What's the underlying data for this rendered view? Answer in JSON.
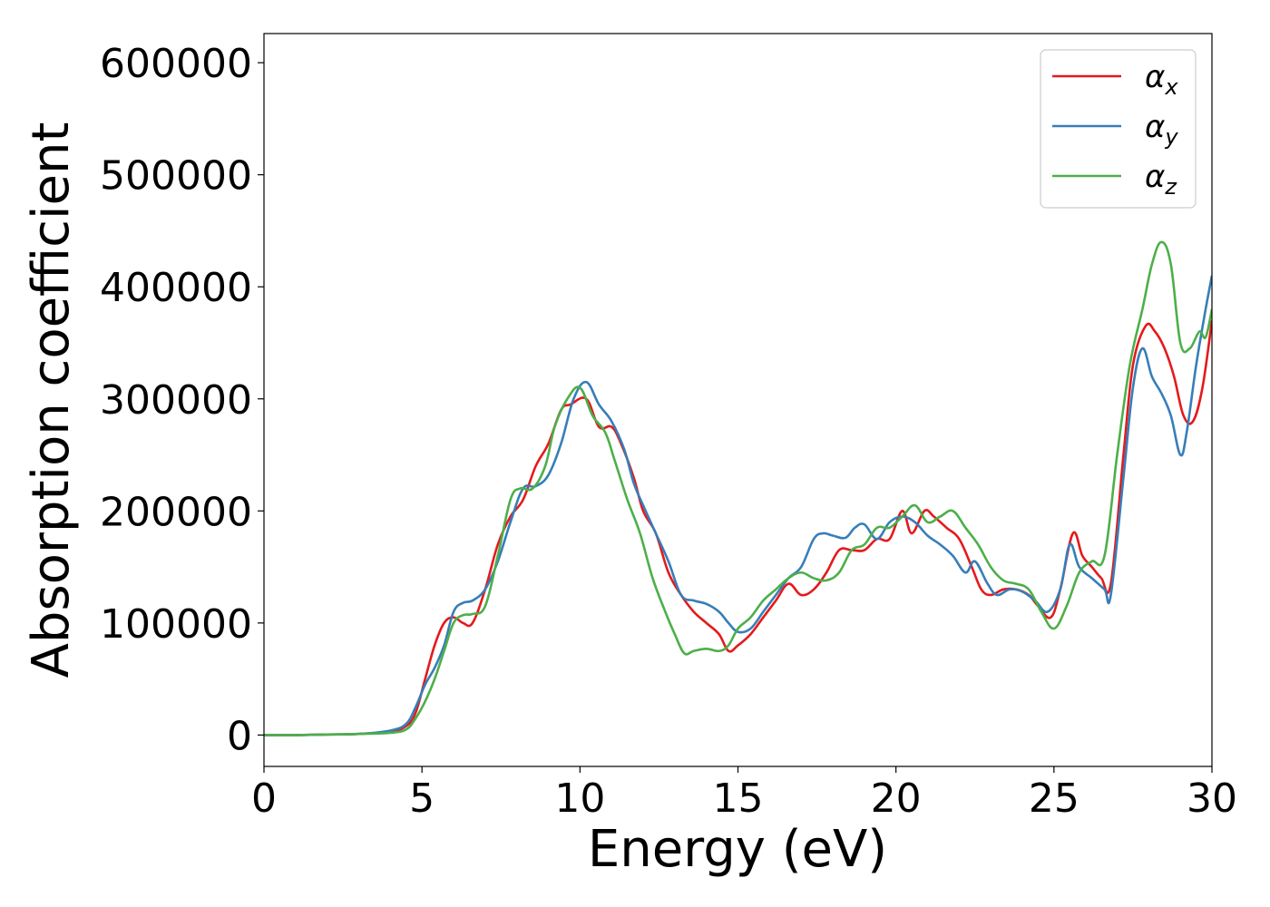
{
  "chart_data": {
    "type": "line",
    "xlabel": "Energy (eV)",
    "ylabel": "Absorption coefficient",
    "xlim": [
      0,
      30
    ],
    "ylim": [
      -28000,
      626000
    ],
    "xticks": [
      0,
      5,
      10,
      15,
      20,
      25,
      30
    ],
    "xtick_labels": [
      "0",
      "5",
      "10",
      "15",
      "20",
      "25",
      "30"
    ],
    "yticks": [
      0,
      100000,
      200000,
      300000,
      400000,
      500000,
      600000
    ],
    "ytick_labels": [
      "0",
      "100000",
      "200000",
      "300000",
      "400000",
      "500000",
      "600000"
    ],
    "grid": false,
    "legend_position": "top-right",
    "series": [
      {
        "name": "α_x",
        "legend_symbol": "α",
        "legend_subscript": "x",
        "color": "#e41a1c",
        "x": [
          0,
          1,
          2,
          3,
          4,
          4.5,
          4.8,
          5.1,
          5.4,
          5.7,
          6.0,
          6.3,
          6.6,
          7.0,
          7.4,
          7.8,
          8.2,
          8.6,
          9.0,
          9.4,
          9.7,
          10.2,
          10.6,
          11.0,
          11.3,
          11.7,
          12.0,
          12.4,
          12.8,
          13.2,
          13.6,
          14.0,
          14.4,
          14.7,
          15.0,
          15.4,
          15.8,
          16.2,
          16.6,
          17.0,
          17.4,
          17.8,
          18.2,
          18.6,
          19.0,
          19.4,
          19.8,
          20.2,
          20.5,
          20.9,
          21.2,
          21.6,
          22.0,
          22.4,
          22.7,
          23.0,
          23.4,
          23.8,
          24.2,
          24.5,
          24.9,
          25.2,
          25.6,
          25.9,
          26.2,
          26.5,
          26.8,
          27.2,
          27.5,
          27.9,
          28.2,
          28.5,
          28.8,
          29.1,
          29.4,
          29.7,
          30.0
        ],
        "y": [
          0,
          0,
          500,
          1000,
          3000,
          8000,
          20000,
          50000,
          80000,
          100000,
          105000,
          100000,
          100000,
          130000,
          170000,
          195000,
          210000,
          240000,
          260000,
          290000,
          295000,
          300000,
          275000,
          275000,
          260000,
          230000,
          200000,
          180000,
          145000,
          125000,
          110000,
          100000,
          90000,
          75000,
          80000,
          90000,
          105000,
          120000,
          135000,
          125000,
          130000,
          145000,
          165000,
          165000,
          165000,
          175000,
          175000,
          200000,
          180000,
          200000,
          195000,
          185000,
          175000,
          150000,
          130000,
          125000,
          130000,
          130000,
          125000,
          115000,
          105000,
          130000,
          180000,
          160000,
          150000,
          140000,
          135000,
          250000,
          330000,
          365000,
          360000,
          345000,
          320000,
          285000,
          280000,
          310000,
          370000
        ]
      },
      {
        "name": "α_y",
        "legend_symbol": "α",
        "legend_subscript": "y",
        "color": "#377eb8",
        "x": [
          0,
          1,
          2,
          3,
          4,
          4.5,
          4.8,
          5.1,
          5.4,
          5.7,
          6.0,
          6.3,
          6.6,
          7.0,
          7.4,
          7.8,
          8.2,
          8.6,
          9.0,
          9.4,
          9.8,
          10.2,
          10.6,
          11.0,
          11.4,
          11.7,
          12.0,
          12.4,
          12.8,
          13.2,
          13.6,
          14.0,
          14.4,
          14.7,
          15.0,
          15.4,
          15.8,
          16.2,
          16.6,
          17.0,
          17.4,
          17.7,
          18.0,
          18.4,
          18.7,
          19.0,
          19.4,
          19.8,
          20.2,
          20.6,
          21.0,
          21.4,
          21.8,
          22.2,
          22.5,
          22.9,
          23.2,
          23.6,
          24.0,
          24.4,
          24.8,
          25.2,
          25.5,
          25.8,
          26.2,
          26.6,
          26.8,
          27.2,
          27.5,
          27.8,
          28.1,
          28.4,
          28.7,
          29.0,
          29.2,
          29.5,
          29.8,
          30.0
        ],
        "y": [
          0,
          0,
          500,
          1000,
          4000,
          10000,
          25000,
          45000,
          60000,
          80000,
          110000,
          118000,
          120000,
          130000,
          155000,
          190000,
          220000,
          222000,
          232000,
          260000,
          300000,
          315000,
          295000,
          280000,
          255000,
          225000,
          205000,
          180000,
          155000,
          125000,
          120000,
          117000,
          110000,
          100000,
          92000,
          95000,
          110000,
          125000,
          140000,
          150000,
          175000,
          180000,
          178000,
          176000,
          185000,
          188000,
          175000,
          190000,
          195000,
          190000,
          178000,
          170000,
          160000,
          145000,
          155000,
          135000,
          125000,
          130000,
          128000,
          120000,
          110000,
          130000,
          170000,
          150000,
          140000,
          130000,
          125000,
          230000,
          310000,
          345000,
          320000,
          305000,
          285000,
          250000,
          270000,
          330000,
          380000,
          410000
        ]
      },
      {
        "name": "α_z",
        "legend_symbol": "α",
        "legend_subscript": "z",
        "color": "#4daf4a",
        "x": [
          0,
          1,
          2,
          3,
          4,
          4.5,
          4.8,
          5.1,
          5.4,
          5.7,
          6.0,
          6.3,
          6.6,
          7.0,
          7.4,
          7.8,
          8.1,
          8.5,
          8.9,
          9.2,
          9.6,
          10.0,
          10.4,
          10.8,
          11.1,
          11.5,
          11.9,
          12.3,
          12.7,
          13.0,
          13.3,
          13.6,
          14.0,
          14.4,
          14.7,
          15.0,
          15.4,
          15.8,
          16.2,
          16.6,
          17.0,
          17.4,
          17.8,
          18.2,
          18.6,
          19.0,
          19.4,
          19.8,
          20.2,
          20.6,
          21.0,
          21.4,
          21.8,
          22.2,
          22.6,
          23.0,
          23.4,
          23.8,
          24.2,
          24.6,
          25.0,
          25.4,
          25.8,
          26.2,
          26.6,
          27.0,
          27.4,
          27.8,
          28.1,
          28.4,
          28.7,
          29.0,
          29.3,
          29.6,
          29.8,
          30.0
        ],
        "y": [
          0,
          0,
          500,
          1000,
          2000,
          5000,
          15000,
          30000,
          50000,
          75000,
          100000,
          107000,
          108000,
          115000,
          160000,
          210000,
          220000,
          220000,
          240000,
          275000,
          300000,
          310000,
          285000,
          270000,
          245000,
          210000,
          180000,
          140000,
          110000,
          90000,
          73000,
          75000,
          77000,
          75000,
          80000,
          95000,
          105000,
          120000,
          130000,
          140000,
          145000,
          140000,
          138000,
          145000,
          165000,
          170000,
          185000,
          185000,
          195000,
          205000,
          190000,
          195000,
          200000,
          185000,
          170000,
          150000,
          138000,
          135000,
          130000,
          110000,
          95000,
          115000,
          145000,
          155000,
          160000,
          250000,
          330000,
          380000,
          420000,
          440000,
          420000,
          350000,
          345000,
          360000,
          355000,
          380000
        ]
      }
    ]
  }
}
